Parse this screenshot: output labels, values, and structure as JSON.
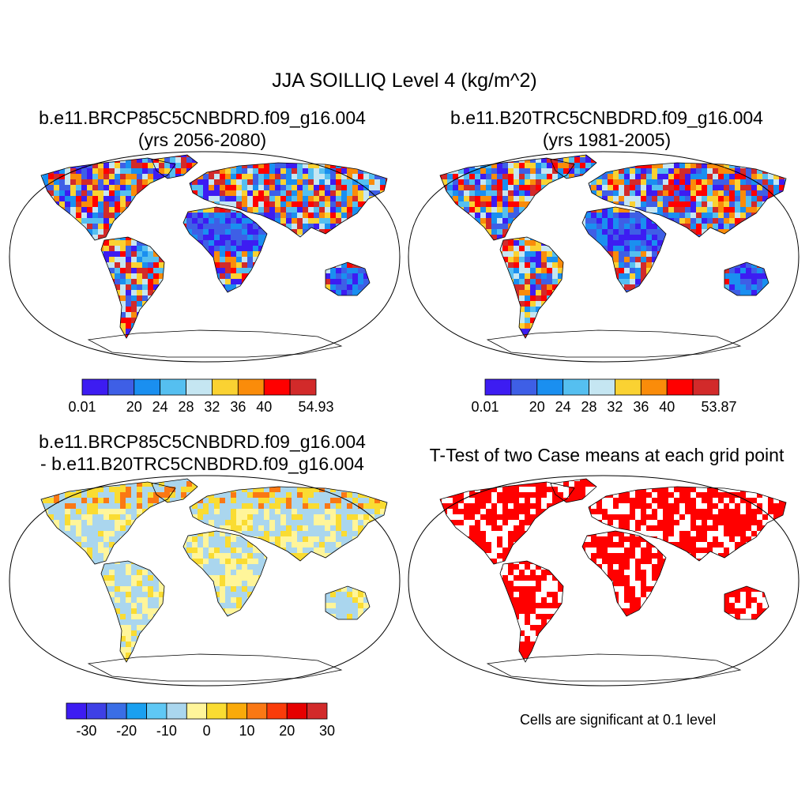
{
  "figure": {
    "title": "JJA SOILLIQ Level 4 (kg/m^2)",
    "note": "Cells are significant at 0.1 level"
  },
  "panels": [
    {
      "title_line1": "b.e11.BRCP85C5CNBDRD.f09_g16.004",
      "title_line2": "(yrs 2056-2080)",
      "field": "case"
    },
    {
      "title_line1": "b.e11.B20TRC5CNBDRD.f09_g16.004",
      "title_line2": "(yrs 1981-2005)",
      "field": "case"
    },
    {
      "title_line1": "b.e11.BRCP85C5CNBDRD.f09_g16.004",
      "title_line2": "- b.e11.B20TRC5CNBDRD.f09_g16.004",
      "field": "difference"
    },
    {
      "title_line1": "T-Test of two Case means at each grid point",
      "title_line2": "",
      "field": "significance",
      "color": "#ff0000"
    }
  ],
  "colorbars": [
    {
      "colors": [
        "#3d1cf2",
        "#3e5fe6",
        "#1a8ff0",
        "#55bff0",
        "#c5e6f2",
        "#fad232",
        "#fa8c0a",
        "#ff0000",
        "#d22a2a"
      ],
      "labels": [
        "0.01",
        "20",
        "24",
        "28",
        "32",
        "36",
        "40",
        "54.93"
      ],
      "label_edges": [
        0,
        2,
        3,
        4,
        5,
        6,
        7,
        9
      ]
    },
    {
      "colors": [
        "#3d1cf2",
        "#3e5fe6",
        "#1a8ff0",
        "#55bff0",
        "#c5e6f2",
        "#fad232",
        "#fa8c0a",
        "#ff0000",
        "#d22a2a"
      ],
      "labels": [
        "0.01",
        "20",
        "24",
        "28",
        "32",
        "36",
        "40",
        "53.87"
      ],
      "label_edges": [
        0,
        2,
        3,
        4,
        5,
        6,
        7,
        9
      ]
    },
    {
      "colors": [
        "#3d1cf2",
        "#3e40e6",
        "#3a6ee6",
        "#1aa0f0",
        "#5fc8f5",
        "#aad6ee",
        "#fff59a",
        "#fadc32",
        "#faaa0a",
        "#fa7814",
        "#fa3c0a",
        "#e60000",
        "#d22a2a"
      ],
      "labels": [
        "-30",
        "-20",
        "-10",
        "0",
        "10",
        "20",
        "30"
      ],
      "label_edges": [
        1,
        3,
        5,
        7,
        9,
        11,
        13
      ]
    }
  ]
}
